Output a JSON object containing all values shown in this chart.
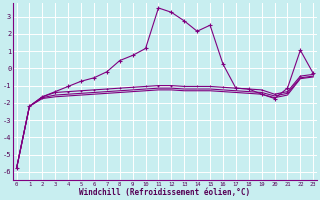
{
  "xlabel": "Windchill (Refroidissement éolien,°C)",
  "bg_color": "#c8eef0",
  "grid_color": "#ffffff",
  "line_color": "#800080",
  "x_ticks": [
    0,
    1,
    2,
    3,
    4,
    5,
    6,
    7,
    8,
    9,
    10,
    11,
    12,
    13,
    14,
    15,
    16,
    17,
    18,
    19,
    20,
    21,
    22,
    23
  ],
  "y_ticks": [
    -6,
    -5,
    -4,
    -3,
    -2,
    -1,
    0,
    1,
    2,
    3
  ],
  "ylim": [
    -6.5,
    3.8
  ],
  "xlim": [
    -0.3,
    23.3
  ],
  "series1_x": [
    0,
    1,
    2,
    3,
    4,
    5,
    6,
    7,
    8,
    9,
    10,
    11,
    12,
    13,
    14,
    15,
    16,
    17,
    18,
    19,
    20,
    21,
    22,
    23
  ],
  "series1_y": [
    -5.8,
    -2.2,
    -1.65,
    -1.35,
    -1.05,
    -0.75,
    -0.55,
    -0.2,
    0.45,
    0.75,
    1.15,
    3.5,
    3.25,
    2.75,
    2.15,
    2.5,
    0.25,
    -1.15,
    -1.2,
    -1.5,
    -1.75,
    -1.15,
    1.05,
    -0.3
  ],
  "series2_x": [
    0,
    1,
    2,
    3,
    4,
    5,
    6,
    7,
    8,
    9,
    10,
    11,
    12,
    13,
    14,
    15,
    16,
    17,
    18,
    19,
    20,
    21,
    22,
    23
  ],
  "series2_y": [
    -5.8,
    -2.2,
    -1.65,
    -1.4,
    -1.35,
    -1.3,
    -1.25,
    -1.2,
    -1.15,
    -1.1,
    -1.05,
    -1.0,
    -1.0,
    -1.05,
    -1.05,
    -1.05,
    -1.1,
    -1.15,
    -1.2,
    -1.25,
    -1.5,
    -1.35,
    -0.45,
    -0.35
  ],
  "series3_x": [
    0,
    1,
    2,
    3,
    4,
    5,
    6,
    7,
    8,
    9,
    10,
    11,
    12,
    13,
    14,
    15,
    16,
    17,
    18,
    19,
    20,
    21,
    22,
    23
  ],
  "series3_y": [
    -5.8,
    -2.2,
    -1.7,
    -1.55,
    -1.5,
    -1.45,
    -1.4,
    -1.35,
    -1.3,
    -1.25,
    -1.2,
    -1.15,
    -1.15,
    -1.2,
    -1.2,
    -1.2,
    -1.25,
    -1.3,
    -1.35,
    -1.4,
    -1.6,
    -1.45,
    -0.55,
    -0.45
  ],
  "series4_x": [
    0,
    1,
    2,
    3,
    4,
    5,
    6,
    7,
    8,
    9,
    10,
    11,
    12,
    13,
    14,
    15,
    16,
    17,
    18,
    19,
    20,
    21,
    22,
    23
  ],
  "series4_y": [
    -5.8,
    -2.2,
    -1.75,
    -1.65,
    -1.6,
    -1.55,
    -1.5,
    -1.45,
    -1.4,
    -1.35,
    -1.3,
    -1.25,
    -1.25,
    -1.3,
    -1.3,
    -1.3,
    -1.35,
    -1.4,
    -1.45,
    -1.5,
    -1.7,
    -1.55,
    -0.6,
    -0.5
  ]
}
